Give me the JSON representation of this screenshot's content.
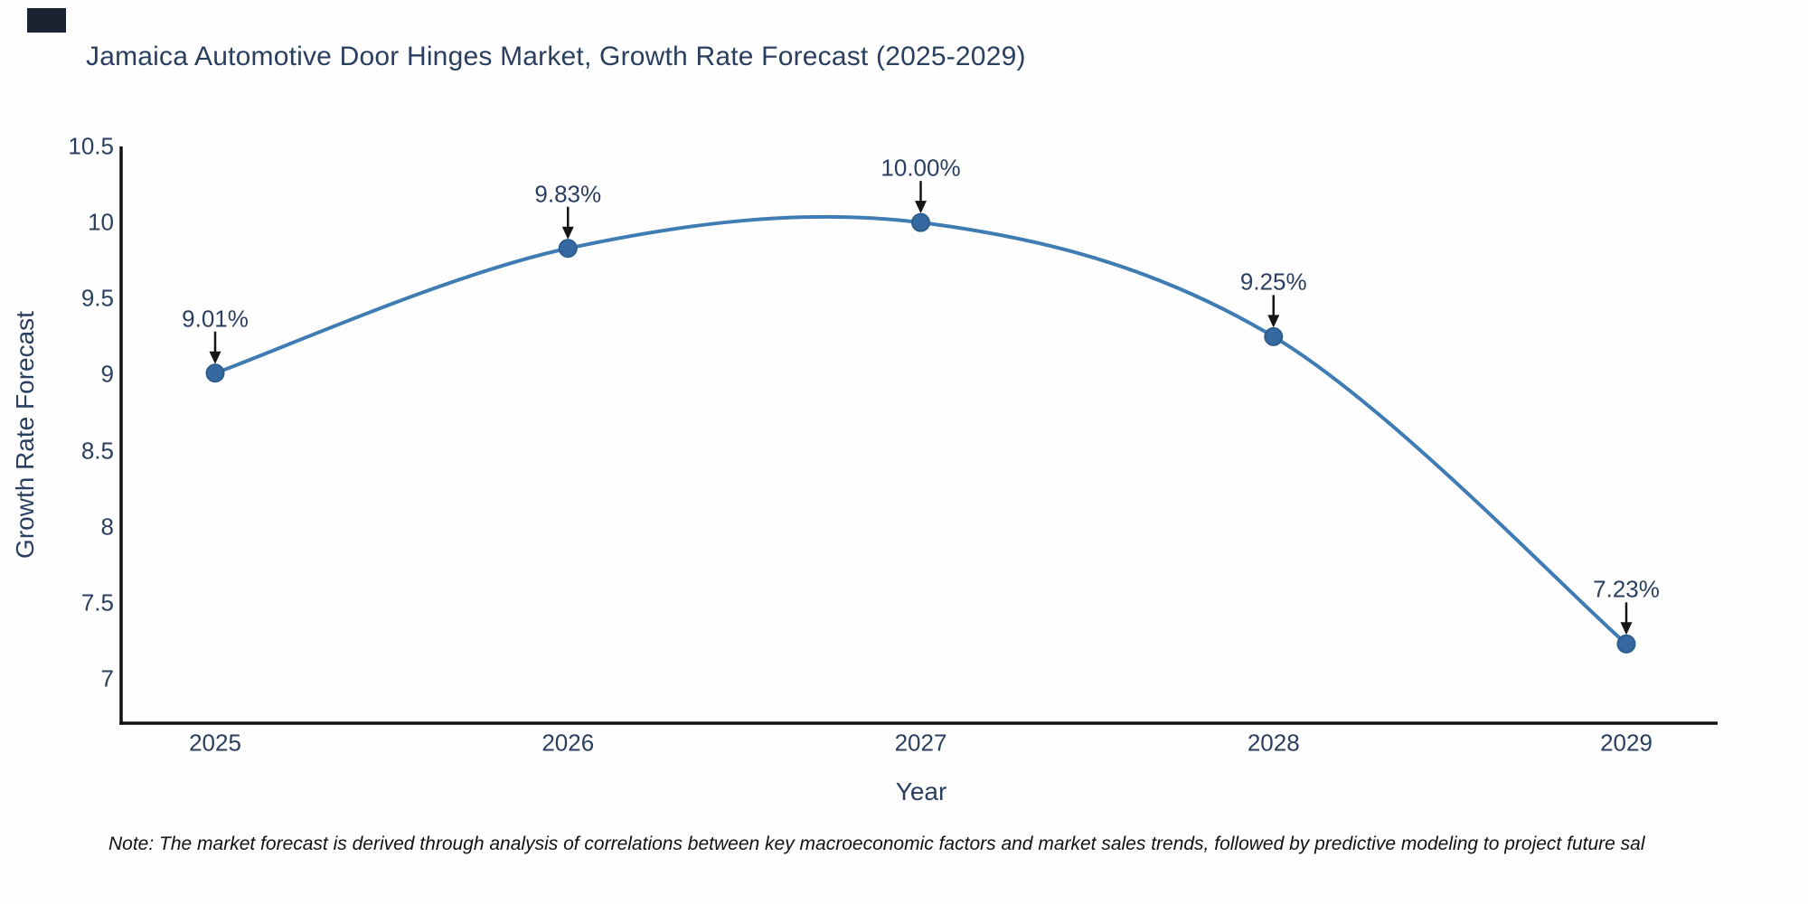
{
  "page": {
    "background": "#fefefe"
  },
  "corner_mark": {
    "color": "#1b2231"
  },
  "chart_data": {
    "type": "line",
    "title": "Jamaica Automotive Door Hinges Market, Growth Rate Forecast (2025-2029)",
    "xlabel": "Year",
    "ylabel": "Growth Rate Forecast",
    "x": [
      "2025",
      "2026",
      "2027",
      "2028",
      "2029"
    ],
    "values": [
      9.01,
      9.83,
      10.0,
      9.25,
      7.23
    ],
    "point_labels": [
      "9.01%",
      "9.83%",
      "10.00%",
      "9.25%",
      "7.23%"
    ],
    "yticks": [
      10.5,
      10,
      9.5,
      9,
      8.5,
      8,
      7.5,
      7
    ],
    "ylim": [
      6.7,
      10.5
    ],
    "line_shape": "spline",
    "grid": false,
    "legend": "none",
    "line_color": "#3f7cb3",
    "marker_color": "#3569a0",
    "marker_edge_color": "#2d5c8f",
    "arrow_color": "#151515",
    "axis_color": "#111111",
    "text_color": "#2a3f5f"
  },
  "note": {
    "text": "Note: The market forecast is derived through analysis of correlations between key macroeconomic factors and market sales trends, followed by predictive modeling to project future sal"
  }
}
